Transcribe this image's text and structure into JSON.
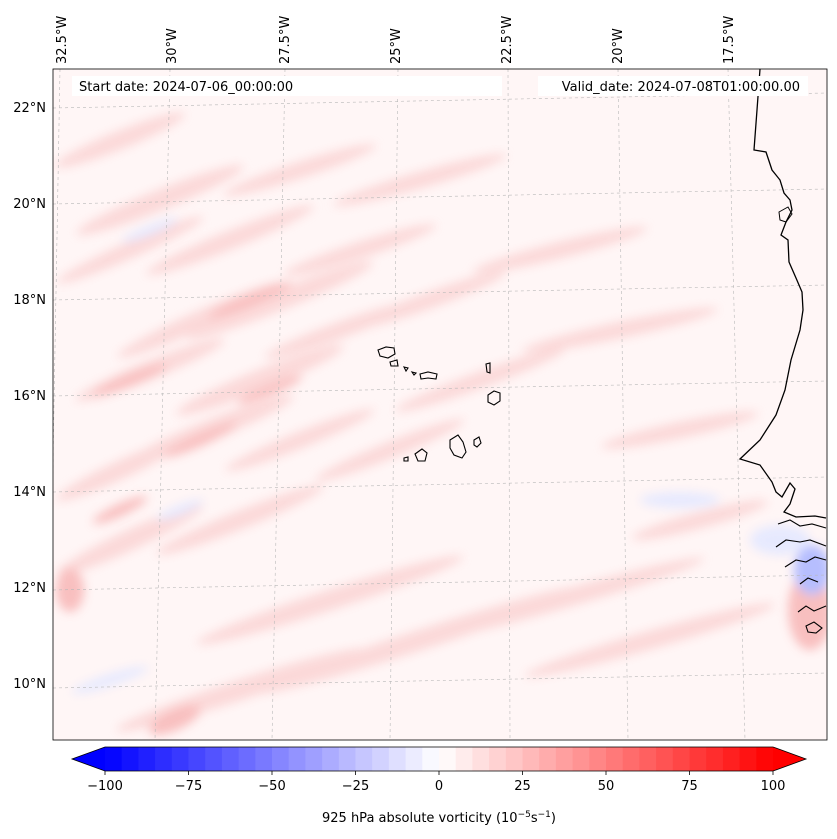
{
  "map": {
    "start_label": "Start date: 2024-07-06_00:00:00",
    "valid_label": "Valid_date: 2024-07-08T01:00:00.00",
    "lon_labels": [
      "32.5°W",
      "30°W",
      "27.5°W",
      "25°W",
      "22.5°W",
      "20°W",
      "17.5°W"
    ],
    "lat_labels": [
      "22°N",
      "20°N",
      "18°N",
      "16°N",
      "14°N",
      "12°N",
      "10°N"
    ]
  },
  "colorbar": {
    "label_main": "925 hPa absolute vorticity (10",
    "label_exp1": "−5",
    "label_mid": "s",
    "label_exp2": "−1",
    "label_end": ")",
    "ticks": [
      "−100",
      "−75",
      "−50",
      "−25",
      "0",
      "25",
      "50",
      "75",
      "100"
    ],
    "min": -100,
    "max": 100,
    "low_color": "#0000ff",
    "mid_color": "#ffffff",
    "high_color": "#ff0000"
  }
}
